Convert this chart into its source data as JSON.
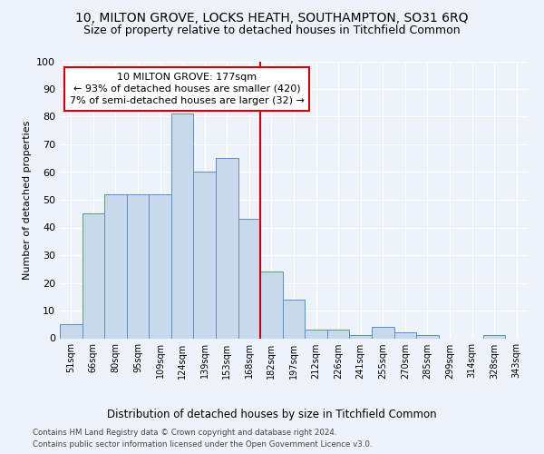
{
  "title": "10, MILTON GROVE, LOCKS HEATH, SOUTHAMPTON, SO31 6RQ",
  "subtitle": "Size of property relative to detached houses in Titchfield Common",
  "xlabel_bottom": "Distribution of detached houses by size in Titchfield Common",
  "ylabel": "Number of detached properties",
  "footer_line1": "Contains HM Land Registry data © Crown copyright and database right 2024.",
  "footer_line2": "Contains public sector information licensed under the Open Government Licence v3.0.",
  "categories": [
    "51sqm",
    "66sqm",
    "80sqm",
    "95sqm",
    "109sqm",
    "124sqm",
    "139sqm",
    "153sqm",
    "168sqm",
    "182sqm",
    "197sqm",
    "212sqm",
    "226sqm",
    "241sqm",
    "255sqm",
    "270sqm",
    "285sqm",
    "299sqm",
    "314sqm",
    "328sqm",
    "343sqm"
  ],
  "values": [
    5,
    45,
    52,
    52,
    52,
    81,
    60,
    65,
    43,
    24,
    14,
    3,
    3,
    1,
    4,
    2,
    1,
    0,
    0,
    1,
    0
  ],
  "bar_color": "#c9d9ec",
  "bar_edge_color": "#5a8fc2",
  "marker_bin_index": 9,
  "marker_line_color": "#cc0000",
  "annotation_text": "10 MILTON GROVE: 177sqm\n← 93% of detached houses are smaller (420)\n7% of semi-detached houses are larger (32) →",
  "annotation_box_color": "#cc0000",
  "ylim": [
    0,
    100
  ],
  "yticks": [
    0,
    10,
    20,
    30,
    40,
    50,
    60,
    70,
    80,
    90,
    100
  ],
  "bg_color": "#eef2f9",
  "plot_bg_color": "#eef2f9",
  "grid_color": "#ffffff",
  "title_fontsize": 10,
  "subtitle_fontsize": 9,
  "ann_fontsize": 8
}
